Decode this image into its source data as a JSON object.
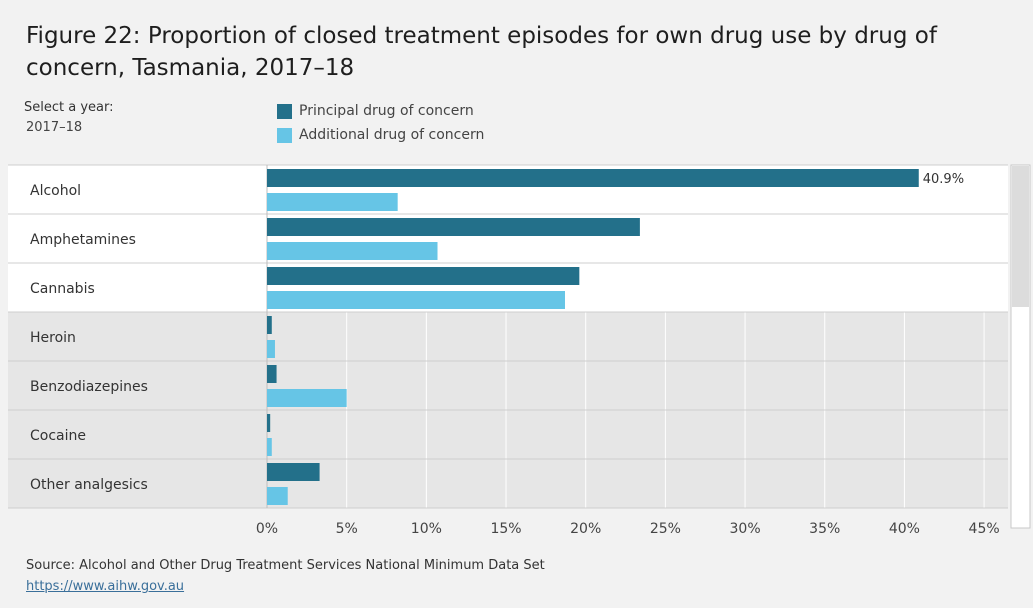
{
  "title": "Figure 22: Proportion of closed treatment episodes for own drug use by drug of concern, Tasmania, 2017–18",
  "year_selector": {
    "label": "Select a year:",
    "value": "2017–18"
  },
  "colors": {
    "principal": "#23708a",
    "additional": "#66c5e6",
    "band_light": "#ffffff",
    "band_dark": "#e6e6e6",
    "gridline": "#ffffff"
  },
  "chart_data": {
    "type": "bar",
    "orientation": "horizontal",
    "categories": [
      "Alcohol",
      "Amphetamines",
      "Cannabis",
      "Heroin",
      "Benzodiazepines",
      "Cocaine",
      "Other analgesics"
    ],
    "series": [
      {
        "name": "Principal drug of concern",
        "values": [
          40.9,
          23.4,
          19.6,
          0.3,
          0.6,
          0.2,
          3.3
        ]
      },
      {
        "name": "Additional drug of concern",
        "values": [
          8.2,
          10.7,
          18.7,
          0.5,
          5.0,
          0.3,
          1.3
        ]
      }
    ],
    "xlim": [
      0,
      46.5
    ],
    "xticks": [
      0,
      5,
      10,
      15,
      20,
      25,
      30,
      35,
      40,
      45
    ],
    "xtick_labels": [
      "0%",
      "5%",
      "10%",
      "15%",
      "20%",
      "25%",
      "30%",
      "35%",
      "40%",
      "45%"
    ],
    "annotations": [
      {
        "category": "Alcohol",
        "series": "Principal drug of concern",
        "label": "40.9%"
      }
    ],
    "legend_position": "top",
    "grid": true
  },
  "source": {
    "text": "Source: Alcohol and Other Drug Treatment Services National Minimum Data Set",
    "link": "https://www.aihw.gov.au"
  }
}
